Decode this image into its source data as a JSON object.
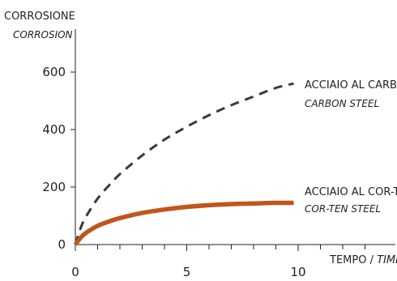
{
  "chart_data": {
    "type": "line",
    "ylabel": "CORROSIONE",
    "ylabel_en": "CORROSION",
    "xlabel": "TEMPO / ",
    "xlabel_en": "TIME",
    "xlim": [
      0,
      14
    ],
    "ylim": [
      0,
      720
    ],
    "xticks": [
      0,
      5,
      10
    ],
    "xtick_labels": [
      "0",
      "5",
      "10"
    ],
    "x_minor_ticks": [
      1,
      2,
      3,
      4,
      6,
      7,
      8,
      9,
      11,
      12,
      13
    ],
    "yticks": [
      0,
      200,
      400,
      600
    ],
    "ytick_labels": [
      "0",
      "200",
      "400",
      "600"
    ],
    "grid": false,
    "legend": "inline labels at end of lines",
    "series": [
      {
        "name": "ACCIAIO AL CARBONIO",
        "name_en": "CARBON STEEL",
        "color": "#3a3a3a",
        "style": "dashed",
        "x": [
          0,
          0.25,
          0.5,
          1,
          1.5,
          2,
          3,
          4,
          5,
          6,
          7,
          8,
          9,
          9.8
        ],
        "y": [
          0,
          60,
          100,
          160,
          205,
          245,
          310,
          365,
          410,
          450,
          485,
          515,
          545,
          560
        ]
      },
      {
        "name": "ACCIAIO AL COR-TEN",
        "name_en": "COR-TEN STEEL",
        "color": "#c0561c",
        "style": "solid",
        "x": [
          0,
          0.25,
          0.5,
          1,
          1.5,
          2,
          3,
          4,
          5,
          6,
          7,
          8,
          9,
          9.8
        ],
        "y": [
          0,
          25,
          42,
          65,
          80,
          92,
          110,
          122,
          131,
          137,
          141,
          143,
          145,
          145
        ]
      }
    ]
  }
}
